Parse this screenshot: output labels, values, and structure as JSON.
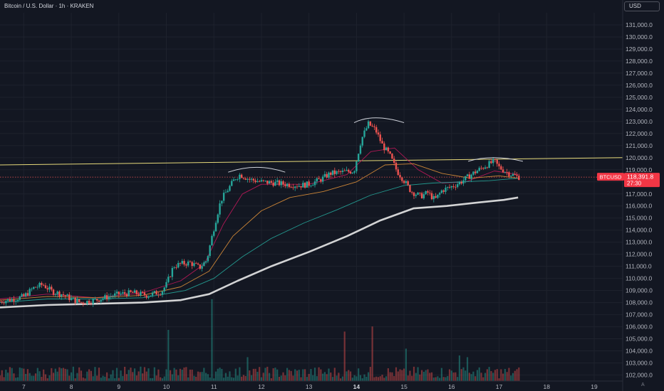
{
  "header": {
    "title": "Bitcoin / U.S. Dollar · 1h · KRAKEN",
    "currency": "USD",
    "auto_label": "A"
  },
  "colors": {
    "background": "#131722",
    "grid": "#1e222d",
    "up": "#26a69a",
    "down": "#ef5350",
    "ma_fast": "#c2185b",
    "ma_mid": "#e0913a",
    "ma_slow": "#26a69a",
    "ma_200": "#e8e8e8",
    "resistance": "#e6d97a",
    "arc": "#d1d4dc",
    "price_tag": "#f23645"
  },
  "price_tag": {
    "symbol": "BTCUSD",
    "price": "118,391.8",
    "countdown": "27:30"
  },
  "chart_data": {
    "type": "candlestick",
    "title": "Bitcoin / U.S. Dollar · 1h · KRAKEN",
    "y_axis": {
      "ticks": [
        102000,
        103000,
        104000,
        105000,
        106000,
        107000,
        108000,
        109000,
        110000,
        111000,
        112000,
        113000,
        114000,
        115000,
        116000,
        117000,
        118000,
        119000,
        120000,
        121000,
        122000,
        123000,
        124000,
        125000,
        126000,
        127000,
        128000,
        129000,
        130000,
        131000
      ],
      "tick_labels": [
        "102,000.0",
        "103,000.0",
        "104,000.0",
        "105,000.0",
        "106,000.0",
        "107,000.0",
        "108,000.0",
        "109,000.0",
        "110,000.0",
        "111,000.0",
        "112,000.0",
        "113,000.0",
        "114,000.0",
        "115,000.0",
        "116,000.0",
        "117,000.0",
        "118,000.0",
        "119,000.0",
        "120,000.0",
        "121,000.0",
        "122,000.0",
        "123,000.0",
        "124,000.0",
        "125,000.0",
        "126,000.0",
        "127,000.0",
        "128,000.0",
        "129,000.0",
        "130,000.0",
        "131,000.0"
      ],
      "range": [
        101500,
        132000
      ],
      "position": "right"
    },
    "x_axis": {
      "range": [
        6.5,
        19.6
      ],
      "ticks": [
        7,
        8,
        9,
        10,
        11,
        12,
        13,
        14,
        15,
        16,
        17,
        18,
        19
      ],
      "tick_labels": [
        "7",
        "8",
        "9",
        "10",
        "11",
        "12",
        "13",
        "14",
        "15",
        "16",
        "17",
        "18",
        "19"
      ],
      "bold_ticks": [
        14
      ]
    },
    "price_path": [
      [
        6.5,
        108100
      ],
      [
        6.8,
        108300
      ],
      [
        7.0,
        108500
      ],
      [
        7.2,
        109200
      ],
      [
        7.4,
        109500
      ],
      [
        7.6,
        108900
      ],
      [
        7.8,
        108700
      ],
      [
        8.0,
        108300
      ],
      [
        8.2,
        108000
      ],
      [
        8.5,
        108200
      ],
      [
        8.7,
        108400
      ],
      [
        9.0,
        108700
      ],
      [
        9.3,
        108800
      ],
      [
        9.6,
        108600
      ],
      [
        9.9,
        108900
      ],
      [
        10.0,
        109500
      ],
      [
        10.15,
        111000
      ],
      [
        10.3,
        111200
      ],
      [
        10.5,
        111300
      ],
      [
        10.7,
        110900
      ],
      [
        10.85,
        111500
      ],
      [
        10.95,
        113300
      ],
      [
        11.05,
        115000
      ],
      [
        11.15,
        116500
      ],
      [
        11.3,
        117400
      ],
      [
        11.45,
        118300
      ],
      [
        11.55,
        118600
      ],
      [
        11.75,
        118200
      ],
      [
        12.0,
        118000
      ],
      [
        12.3,
        117900
      ],
      [
        12.5,
        117800
      ],
      [
        12.8,
        117700
      ],
      [
        13.0,
        117800
      ],
      [
        13.25,
        118200
      ],
      [
        13.45,
        118700
      ],
      [
        13.7,
        118800
      ],
      [
        13.95,
        118900
      ],
      [
        14.1,
        121500
      ],
      [
        14.25,
        122800
      ],
      [
        14.4,
        122300
      ],
      [
        14.55,
        121000
      ],
      [
        14.7,
        120200
      ],
      [
        14.85,
        118900
      ],
      [
        15.0,
        118100
      ],
      [
        15.15,
        117200
      ],
      [
        15.35,
        116800
      ],
      [
        15.5,
        117100
      ],
      [
        15.65,
        116500
      ],
      [
        15.8,
        117300
      ],
      [
        16.0,
        117600
      ],
      [
        16.2,
        118000
      ],
      [
        16.45,
        118700
      ],
      [
        16.7,
        119300
      ],
      [
        16.9,
        119700
      ],
      [
        17.0,
        119200
      ],
      [
        17.2,
        118700
      ],
      [
        17.4,
        118400
      ]
    ],
    "moving_averages": [
      {
        "name": "",
        "color_key": "ma_fast",
        "points": [
          [
            6.5,
            108300
          ],
          [
            7.5,
            108700
          ],
          [
            8.5,
            108400
          ],
          [
            9.5,
            108800
          ],
          [
            10.3,
            109800
          ],
          [
            10.8,
            111200
          ],
          [
            11.2,
            114500
          ],
          [
            11.6,
            117000
          ],
          [
            12.0,
            117800
          ],
          [
            13.0,
            117800
          ],
          [
            13.8,
            118600
          ],
          [
            14.3,
            120500
          ],
          [
            14.8,
            120800
          ],
          [
            15.3,
            119000
          ],
          [
            15.8,
            117900
          ],
          [
            16.3,
            118000
          ],
          [
            16.9,
            118900
          ],
          [
            17.4,
            118600
          ]
        ]
      },
      {
        "name": "",
        "color_key": "ma_mid",
        "points": [
          [
            6.5,
            108200
          ],
          [
            7.5,
            108500
          ],
          [
            8.5,
            108400
          ],
          [
            9.5,
            108600
          ],
          [
            10.3,
            109300
          ],
          [
            10.9,
            110600
          ],
          [
            11.4,
            113500
          ],
          [
            12.0,
            115600
          ],
          [
            12.6,
            116700
          ],
          [
            13.3,
            117200
          ],
          [
            14.0,
            118000
          ],
          [
            14.6,
            119400
          ],
          [
            15.2,
            119500
          ],
          [
            15.8,
            118700
          ],
          [
            16.4,
            118300
          ],
          [
            17.0,
            118500
          ],
          [
            17.4,
            118300
          ]
        ]
      },
      {
        "name": "",
        "color_key": "ma_slow",
        "points": [
          [
            6.5,
            108000
          ],
          [
            7.5,
            108300
          ],
          [
            8.5,
            108300
          ],
          [
            9.5,
            108400
          ],
          [
            10.4,
            109000
          ],
          [
            11.0,
            110000
          ],
          [
            11.6,
            111800
          ],
          [
            12.2,
            113300
          ],
          [
            12.9,
            114600
          ],
          [
            13.6,
            115700
          ],
          [
            14.3,
            116900
          ],
          [
            15.0,
            117700
          ],
          [
            15.6,
            117900
          ],
          [
            16.2,
            118000
          ],
          [
            16.8,
            118100
          ],
          [
            17.4,
            118300
          ]
        ]
      },
      {
        "name": "",
        "color_key": "ma_200",
        "points": [
          [
            6.5,
            107600
          ],
          [
            7.5,
            107800
          ],
          [
            8.5,
            107900
          ],
          [
            9.5,
            108000
          ],
          [
            10.3,
            108200
          ],
          [
            10.9,
            108700
          ],
          [
            11.5,
            109800
          ],
          [
            12.2,
            111000
          ],
          [
            13.0,
            112200
          ],
          [
            13.8,
            113500
          ],
          [
            14.5,
            114800
          ],
          [
            15.2,
            115800
          ],
          [
            15.9,
            116000
          ],
          [
            16.6,
            116300
          ],
          [
            17.1,
            116500
          ],
          [
            17.4,
            116700
          ]
        ]
      }
    ],
    "resistance_line": {
      "from": [
        6.5,
        119400
      ],
      "to": [
        19.6,
        120000
      ]
    },
    "current_price_line": 118391.8,
    "arcs": [
      {
        "from": [
          11.3,
          118800
        ],
        "peak": [
          11.9,
          119200
        ],
        "to": [
          12.5,
          118800
        ]
      },
      {
        "from": [
          13.95,
          122900
        ],
        "peak": [
          14.35,
          123300
        ],
        "to": [
          15.0,
          122900
        ]
      },
      {
        "from": [
          16.35,
          119700
        ],
        "peak": [
          16.85,
          120000
        ],
        "to": [
          17.5,
          119700
        ]
      }
    ],
    "volume": {
      "range": [
        0,
        100
      ],
      "spikes": [
        [
          10.05,
          60,
          "down"
        ],
        [
          10.95,
          96,
          "up"
        ],
        [
          11.7,
          28,
          "down"
        ],
        [
          13.75,
          58,
          "down"
        ],
        [
          14.35,
          64,
          "up"
        ],
        [
          15.05,
          38,
          "up"
        ],
        [
          16.15,
          30,
          "up"
        ],
        [
          16.35,
          28,
          "down"
        ]
      ]
    },
    "grid": true,
    "legend": "none"
  }
}
